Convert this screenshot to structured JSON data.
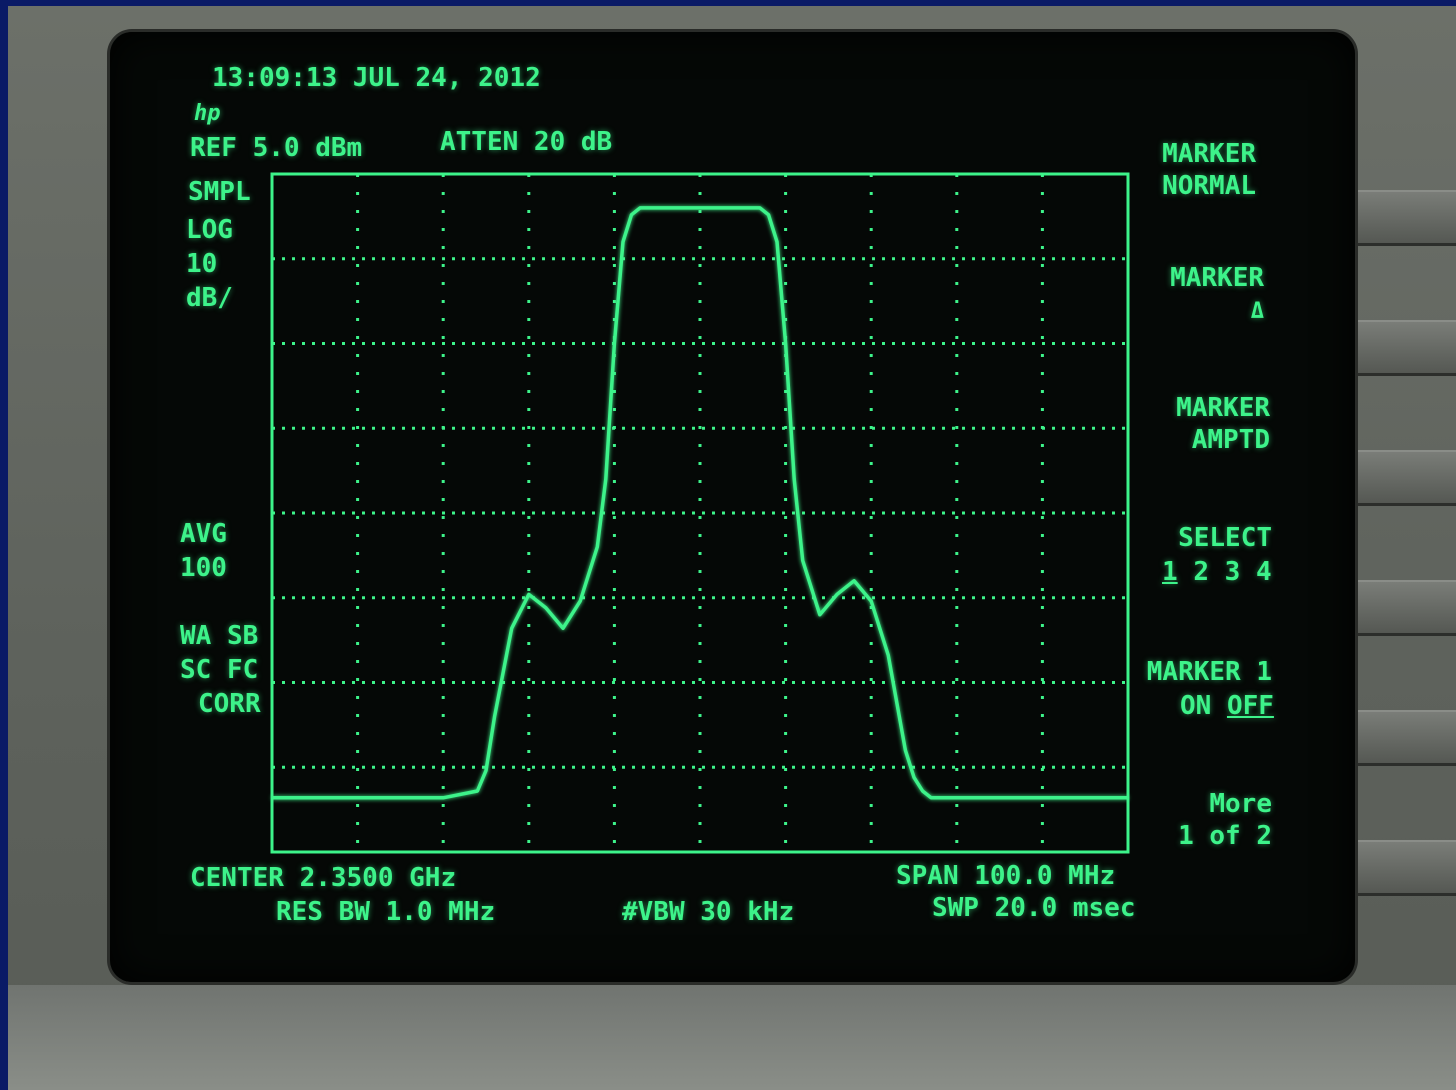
{
  "header": {
    "timestamp": "13:09:13 JUL 24, 2012",
    "logo": "hp",
    "ref_level": "REF 5.0 dBm",
    "attenuation": "ATTEN 20 dB"
  },
  "left_annotations": {
    "detector": "SMPL",
    "scale_1": "LOG",
    "scale_2": "10",
    "scale_3": "dB/",
    "avg_1": "AVG",
    "avg_2": "100",
    "status_1": "WA SB",
    "status_2": "SC FC",
    "status_3": "CORR"
  },
  "softkeys": [
    {
      "line1": "MARKER",
      "line2": "NORMAL"
    },
    {
      "line1": "MARKER",
      "line2": "Δ"
    },
    {
      "line1": "MARKER",
      "line2": "AMPTD"
    },
    {
      "line1": "SELECT",
      "line2_parts": [
        "1",
        "2",
        "3",
        "4"
      ],
      "selected": "1"
    },
    {
      "line1": "MARKER 1",
      "line2_parts": [
        "ON",
        "OFF"
      ],
      "selected": "OFF"
    },
    {
      "line1": "More",
      "line2": "1 of 2"
    }
  ],
  "footer": {
    "center": "CENTER 2.3500 GHz",
    "span": "SPAN 100.0 MHz",
    "res_bw": "RES BW 1.0 MHz",
    "vbw": "#VBW 30 kHz",
    "sweep": "SWP 20.0 msec"
  },
  "colors": {
    "trace": "#3df38a",
    "screen": "#050806"
  },
  "chart_data": {
    "type": "line",
    "x_unit": "MHz offset from center",
    "y_unit": "dBm",
    "xlim": [
      -50,
      50
    ],
    "ylim": [
      -95,
      5
    ],
    "grid": true,
    "x": [
      -50,
      -40,
      -30,
      -26,
      -25,
      -24,
      -22,
      -20,
      -18,
      -16,
      -14,
      -12,
      -11,
      -10,
      -9,
      -8,
      -7,
      -6,
      -5,
      -3,
      0,
      3,
      5,
      6,
      7,
      8,
      9,
      10,
      11,
      12,
      14,
      16,
      18,
      20,
      22,
      24,
      25,
      26,
      27,
      28,
      30,
      40,
      50
    ],
    "y": [
      -87,
      -87,
      -87,
      -86,
      -83,
      -75,
      -62,
      -57,
      -59,
      -62,
      -58,
      -50,
      -40,
      -20,
      -5,
      -1,
      0,
      0,
      0,
      0,
      0,
      0,
      0,
      0,
      0,
      -1,
      -5,
      -20,
      -40,
      -52,
      -60,
      -57,
      -55,
      -58,
      -66,
      -80,
      -84,
      -86,
      -87,
      -87,
      -87,
      -87,
      -87
    ]
  }
}
